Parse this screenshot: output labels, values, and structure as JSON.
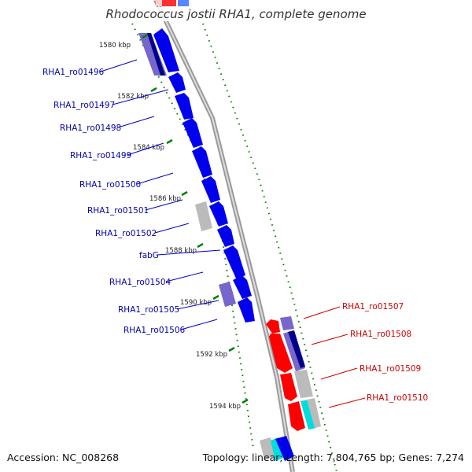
{
  "title": "Rhodococcus jostii RHA1, complete genome",
  "accession_text": "Accession: NC_008268",
  "info_text": "Topology: linear; Length: 7,804,765 bp; Genes: 7,274",
  "ticks": [
    "1580 kbp",
    "1582 kbp",
    "1584 kbp",
    "1586 kbp",
    "1588 kbp",
    "1590 kbp",
    "1592 kbp",
    "1594 kbp"
  ],
  "left_genes": [
    "RHA1_ro01496",
    "RHA1_ro01497",
    "RHA1_ro01498",
    "RHA1_ro01499",
    "RHA1_ro01500",
    "RHA1_ro01501",
    "RHA1_ro01502",
    "fabG",
    "RHA1_ro01504",
    "RHA1_ro01505",
    "RHA1_ro01506"
  ],
  "right_genes": [
    "RHA1_ro01507",
    "RHA1_ro01508",
    "RHA1_ro01509",
    "RHA1_ro01510"
  ],
  "colors": {
    "forward_cds": "#0000ee",
    "reverse_cds": "#ff0000",
    "left_label": "#0000aa",
    "right_label": "#cc0000",
    "tick_mark": "#008000",
    "backbone": "#888888"
  }
}
